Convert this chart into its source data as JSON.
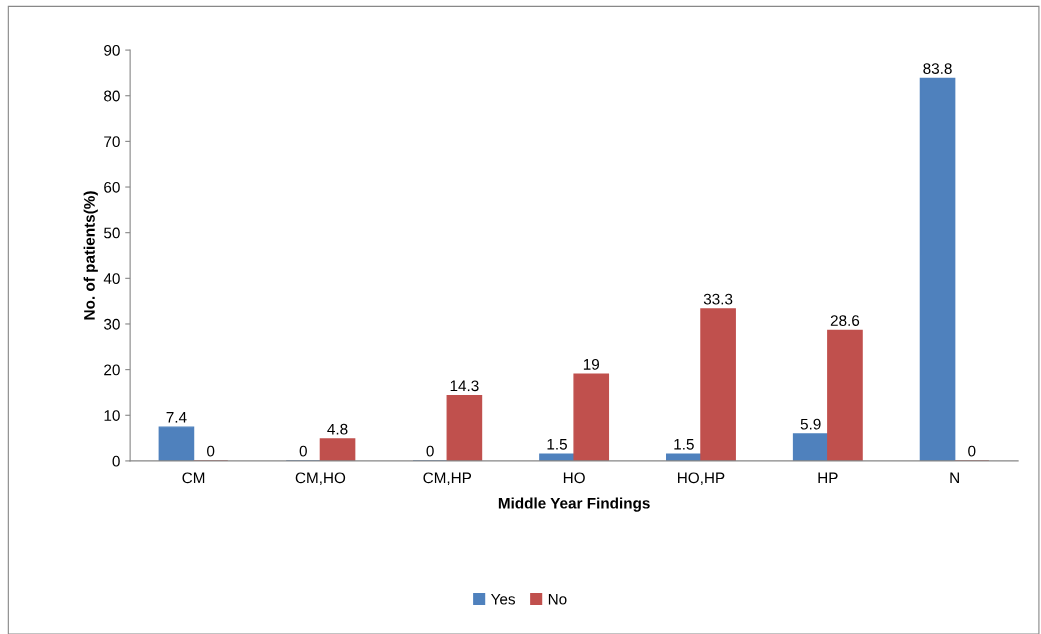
{
  "chart_data": {
    "type": "bar",
    "xlabel": "Middle Year Findings",
    "ylabel": "No. of patients(%)",
    "categories": [
      "CM",
      "CM,HO",
      "CM,HP",
      "HO",
      "HO,HP",
      "HP",
      "N"
    ],
    "series": [
      {
        "name": "Yes",
        "color": "#4f81bd",
        "values": [
          7.4,
          0,
          0,
          1.5,
          1.5,
          5.9,
          83.8
        ]
      },
      {
        "name": "No",
        "color": "#c0504d",
        "values": [
          0,
          4.8,
          14.3,
          19,
          33.3,
          28.6,
          0
        ]
      }
    ],
    "ylim": [
      0,
      90
    ],
    "yticks": [
      0,
      10,
      20,
      30,
      40,
      50,
      60,
      70,
      80,
      90
    ],
    "grid": false,
    "legend": "bottom",
    "data_labels": true
  }
}
